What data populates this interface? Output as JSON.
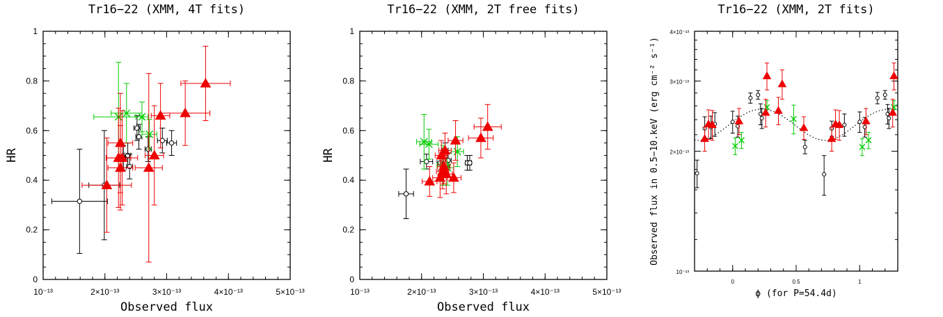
{
  "chart_data": [
    {
      "type": "scatter",
      "title": "Tr16−22 (XMM, 4T fits)",
      "xlabel": "Observed flux",
      "ylabel": "HR",
      "xlim": [
        1e-13,
        5e-13
      ],
      "ylim": [
        0,
        1
      ],
      "xticks": [
        "10⁻¹³",
        "2×10⁻¹³",
        "3×10⁻¹³",
        "4×10⁻¹³",
        "5×10⁻¹³"
      ],
      "yticks": [
        "0",
        "0.2",
        "0.4",
        "0.6",
        "0.8",
        "1"
      ],
      "series": [
        {
          "marker": "circle",
          "color": "#000000",
          "points": [
            {
              "x": 1.59e-13,
              "y": 0.315,
              "xerr": 4.5e-14,
              "yerr": 0.21
            },
            {
              "x": 1.99e-13,
              "y": 0.38,
              "xerr": 2.5e-14,
              "yerr": 0.22
            },
            {
              "x": 2.3e-13,
              "y": 0.49,
              "xerr": 5e-15,
              "yerr": 0.05
            },
            {
              "x": 2.37e-13,
              "y": 0.5,
              "xerr": 5e-15,
              "yerr": 0.05
            },
            {
              "x": 2.4e-13,
              "y": 0.455,
              "xerr": 5e-15,
              "yerr": 0.05
            },
            {
              "x": 2.52e-13,
              "y": 0.61,
              "xerr": 5e-15,
              "yerr": 0.05
            },
            {
              "x": 2.55e-13,
              "y": 0.575,
              "xerr": 5e-15,
              "yerr": 0.05
            },
            {
              "x": 2.7e-13,
              "y": 0.525,
              "xerr": 5e-15,
              "yerr": 0.05
            },
            {
              "x": 2.93e-13,
              "y": 0.56,
              "xerr": 8e-15,
              "yerr": 0.05
            },
            {
              "x": 3.08e-13,
              "y": 0.55,
              "xerr": 8e-15,
              "yerr": 0.05
            }
          ]
        },
        {
          "marker": "cross",
          "color": "#00cc00",
          "points": [
            {
              "x": 2.22e-13,
              "y": 0.655,
              "xerr": 4e-14,
              "yerr": 0.22
            },
            {
              "x": 2.35e-13,
              "y": 0.67,
              "xerr": 2.5e-14,
              "yerr": 0.12
            },
            {
              "x": 2.6e-13,
              "y": 0.655,
              "xerr": 1e-14,
              "yerr": 0.06
            },
            {
              "x": 2.72e-13,
              "y": 0.585,
              "xerr": 1.2e-14,
              "yerr": 0.06
            }
          ]
        },
        {
          "marker": "triangle",
          "color": "#ee0000",
          "points": [
            {
              "x": 2.03e-13,
              "y": 0.38,
              "xerr": 4e-14,
              "yerr": 0.19
            },
            {
              "x": 2.22e-13,
              "y": 0.49,
              "xerr": 2e-14,
              "yerr": 0.2
            },
            {
              "x": 2.25e-13,
              "y": 0.45,
              "xerr": 2e-14,
              "yerr": 0.17
            },
            {
              "x": 2.25e-13,
              "y": 0.55,
              "xerr": 2e-14,
              "yerr": 0.2
            },
            {
              "x": 2.28e-13,
              "y": 0.49,
              "xerr": 2.5e-14,
              "yerr": 0.19
            },
            {
              "x": 2.71e-13,
              "y": 0.45,
              "xerr": 2.2e-14,
              "yerr": 0.38
            },
            {
              "x": 2.8e-13,
              "y": 0.5,
              "xerr": 1.5e-14,
              "yerr": 0.2
            },
            {
              "x": 2.9e-13,
              "y": 0.66,
              "xerr": 1.5e-14,
              "yerr": 0.13
            },
            {
              "x": 3.3e-13,
              "y": 0.67,
              "xerr": 4e-14,
              "yerr": 0.13
            },
            {
              "x": 3.63e-13,
              "y": 0.79,
              "xerr": 4e-14,
              "yerr": 0.15
            }
          ]
        }
      ]
    },
    {
      "type": "scatter",
      "title": "Tr16−22 (XMM, 2T free fits)",
      "xlabel": "Observed flux",
      "ylabel": "HR",
      "xlim": [
        1e-13,
        5e-13
      ],
      "ylim": [
        0,
        1
      ],
      "xticks": [
        "10⁻¹³",
        "2×10⁻¹³",
        "3×10⁻¹³",
        "4×10⁻¹³",
        "5×10⁻¹³"
      ],
      "yticks": [
        "0",
        "0.2",
        "0.4",
        "0.6",
        "0.8",
        "1"
      ],
      "series": [
        {
          "marker": "circle",
          "color": "#000000",
          "points": [
            {
              "x": 1.75e-13,
              "y": 0.345,
              "xerr": 1.2e-14,
              "yerr": 0.1
            },
            {
              "x": 2.08e-13,
              "y": 0.475,
              "xerr": 1e-14,
              "yerr": 0.03
            },
            {
              "x": 2.3e-13,
              "y": 0.47,
              "xerr": 5e-15,
              "yerr": 0.03
            },
            {
              "x": 2.38e-13,
              "y": 0.52,
              "xerr": 5e-15,
              "yerr": 0.03
            },
            {
              "x": 2.43e-13,
              "y": 0.48,
              "xerr": 5e-15,
              "yerr": 0.03
            },
            {
              "x": 2.74e-13,
              "y": 0.47,
              "xerr": 3e-15,
              "yerr": 0.03
            },
            {
              "x": 2.78e-13,
              "y": 0.47,
              "xerr": 3e-15,
              "yerr": 0.03
            }
          ]
        },
        {
          "marker": "cross",
          "color": "#00cc00",
          "points": [
            {
              "x": 2.04e-13,
              "y": 0.555,
              "xerr": 1.2e-14,
              "yerr": 0.11
            },
            {
              "x": 2.12e-13,
              "y": 0.545,
              "xerr": 1.5e-14,
              "yerr": 0.06
            },
            {
              "x": 2.35e-13,
              "y": 0.46,
              "xerr": 1e-14,
              "yerr": 0.08
            },
            {
              "x": 2.42e-13,
              "y": 0.45,
              "xerr": 1e-14,
              "yerr": 0.07
            },
            {
              "x": 2.58e-13,
              "y": 0.515,
              "xerr": 1e-14,
              "yerr": 0.06
            }
          ]
        },
        {
          "marker": "triangle",
          "color": "#ee0000",
          "points": [
            {
              "x": 2.13e-13,
              "y": 0.395,
              "xerr": 1.2e-14,
              "yerr": 0.06
            },
            {
              "x": 2.3e-13,
              "y": 0.41,
              "xerr": 1.2e-14,
              "yerr": 0.08
            },
            {
              "x": 2.32e-13,
              "y": 0.5,
              "xerr": 1e-14,
              "yerr": 0.06
            },
            {
              "x": 2.34e-13,
              "y": 0.435,
              "xerr": 1e-14,
              "yerr": 0.07
            },
            {
              "x": 2.36e-13,
              "y": 0.455,
              "xerr": 1e-14,
              "yerr": 0.07
            },
            {
              "x": 2.38e-13,
              "y": 0.52,
              "xerr": 1e-14,
              "yerr": 0.07
            },
            {
              "x": 2.4e-13,
              "y": 0.425,
              "xerr": 1e-14,
              "yerr": 0.08
            },
            {
              "x": 2.52e-13,
              "y": 0.41,
              "xerr": 1.2e-14,
              "yerr": 0.06
            },
            {
              "x": 2.55e-13,
              "y": 0.56,
              "xerr": 1.2e-14,
              "yerr": 0.08
            },
            {
              "x": 2.96e-13,
              "y": 0.57,
              "xerr": 2e-14,
              "yerr": 0.08
            },
            {
              "x": 3.07e-13,
              "y": 0.615,
              "xerr": 2.2e-14,
              "yerr": 0.09
            }
          ]
        }
      ]
    },
    {
      "type": "scatter",
      "title": "Tr16−22 (XMM, 2T fits)",
      "xlabel": "ϕ (for P=54.4d)",
      "ylabel": "Observed flux in 0.5−10.keV (erg cm⁻² s⁻¹)",
      "xlim": [
        -0.3,
        1.3
      ],
      "ylim": [
        1e-13,
        4e-13
      ],
      "yscale": "log",
      "xticks": [
        "0",
        "0.5",
        "1"
      ],
      "yticks": [
        "10⁻¹³",
        "2×10⁻¹³",
        "3×10⁻¹³",
        "4×10⁻¹³"
      ],
      "model_curve": {
        "style": "dotted",
        "color": "#000000",
        "mean": 2.34e-13,
        "amplitude": 2.1e-14,
        "phase_of_max": 0.23
      },
      "series": [
        {
          "marker": "circle",
          "color": "#000000",
          "points": [
            {
              "x": -0.28,
              "y": 1.76e-13,
              "yerr": 1.4e-14
            },
            {
              "x": -0.22,
              "y": 2.28e-13,
              "yerr": 1.6e-14
            },
            {
              "x": -0.17,
              "y": 2.3e-13,
              "yerr": 1.5e-14
            },
            {
              "x": -0.14,
              "y": 2.34e-13,
              "yerr": 1.6e-14
            },
            {
              "x": 0.0,
              "y": 2.37e-13,
              "yerr": 1.5e-14
            },
            {
              "x": 0.04,
              "y": 2.31e-13,
              "yerr": 1.4e-14
            },
            {
              "x": 0.14,
              "y": 2.72e-13,
              "yerr": 8e-15
            },
            {
              "x": 0.2,
              "y": 2.77e-13,
              "yerr": 7e-15
            },
            {
              "x": 0.22,
              "y": 2.48e-13,
              "yerr": 1.5e-14
            },
            {
              "x": 0.23,
              "y": 2.42e-13,
              "yerr": 1.4e-14
            },
            {
              "x": 0.57,
              "y": 2.05e-13,
              "yerr": 8e-15
            },
            {
              "x": 0.72,
              "y": 1.75e-13,
              "yerr": 2e-14
            },
            {
              "x": 0.78,
              "y": 2.28e-13,
              "yerr": 1e-14
            },
            {
              "x": 0.88,
              "y": 2.33e-13,
              "yerr": 1.5e-14
            },
            {
              "x": 1.0,
              "y": 2.37e-13,
              "yerr": 1.4e-14
            },
            {
              "x": 1.04,
              "y": 2.3e-13,
              "yerr": 1.3e-14
            },
            {
              "x": 1.14,
              "y": 2.72e-13,
              "yerr": 9e-15
            },
            {
              "x": 1.2,
              "y": 2.77e-13,
              "yerr": 7e-15
            },
            {
              "x": 1.22,
              "y": 2.48e-13,
              "yerr": 1.4e-14
            },
            {
              "x": 1.23,
              "y": 2.42e-13,
              "yerr": 1.4e-14
            }
          ]
        },
        {
          "marker": "cross",
          "color": "#00cc00",
          "points": [
            {
              "x": 0.02,
              "y": 2.06e-13,
              "yerr": 1e-14
            },
            {
              "x": 0.07,
              "y": 2.13e-13,
              "yerr": 1e-14
            },
            {
              "x": 0.27,
              "y": 2.58e-13,
              "yerr": 1e-14
            },
            {
              "x": 0.48,
              "y": 2.41e-13,
              "yerr": 2e-14
            },
            {
              "x": 1.02,
              "y": 2.05e-13,
              "yerr": 1e-14
            },
            {
              "x": 1.07,
              "y": 2.13e-13,
              "yerr": 1e-14
            },
            {
              "x": 1.27,
              "y": 2.58e-13,
              "yerr": 1e-14
            }
          ]
        },
        {
          "marker": "triangle",
          "color": "#ee0000",
          "points": [
            {
              "x": -0.22,
              "y": 2.15e-13,
              "yerr": 1.5e-14
            },
            {
              "x": -0.19,
              "y": 2.34e-13,
              "yerr": 2e-14
            },
            {
              "x": -0.16,
              "y": 2.33e-13,
              "yerr": 2e-14
            },
            {
              "x": 0.05,
              "y": 2.38e-13,
              "yerr": 1.8e-14
            },
            {
              "x": 0.26,
              "y": 2.5e-13,
              "yerr": 2e-14
            },
            {
              "x": 0.27,
              "y": 3.09e-13,
              "yerr": 2.4e-14
            },
            {
              "x": 0.36,
              "y": 2.53e-13,
              "yerr": 2e-14
            },
            {
              "x": 0.39,
              "y": 2.95e-13,
              "yerr": 2.5e-14
            },
            {
              "x": 0.56,
              "y": 2.29e-13,
              "yerr": 1.5e-14
            },
            {
              "x": 0.78,
              "y": 2.15e-13,
              "yerr": 1.5e-14
            },
            {
              "x": 0.81,
              "y": 2.34e-13,
              "yerr": 2e-14
            },
            {
              "x": 0.84,
              "y": 2.33e-13,
              "yerr": 2e-14
            },
            {
              "x": 1.05,
              "y": 2.38e-13,
              "yerr": 1.8e-14
            },
            {
              "x": 1.26,
              "y": 2.5e-13,
              "yerr": 2e-14
            },
            {
              "x": 1.27,
              "y": 3.09e-13,
              "yerr": 2.4e-14
            }
          ]
        }
      ]
    }
  ]
}
